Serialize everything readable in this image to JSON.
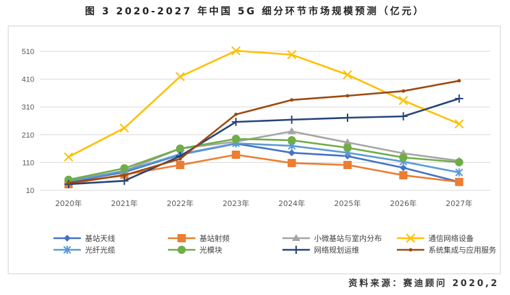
{
  "title": "图 3 2020-2027 年中国 5G 细分环节市场规模预测（亿元）",
  "source": "资料来源：赛迪顾问 2020,2",
  "chart_data": {
    "type": "line",
    "title": "图 3 2020-2027 年中国 5G 细分环节市场规模预测（亿元）",
    "categories": [
      "2020年",
      "2021年",
      "2022年",
      "2023年",
      "2024年",
      "2025年",
      "2026年",
      "2027年"
    ],
    "ylim": [
      10,
      560
    ],
    "yticks": [
      10,
      110,
      210,
      310,
      410,
      510
    ],
    "grid": true,
    "legend_placement": "bottom",
    "series": [
      {
        "name": "基站天线",
        "color": "#4472C4",
        "marker": "diamond",
        "values": [
          40,
          75,
          138,
          178,
          145,
          133,
          91,
          40
        ]
      },
      {
        "name": "基站射频",
        "color": "#ED7D31",
        "marker": "square",
        "values": [
          32,
          66,
          101,
          138,
          108,
          101,
          64,
          40
        ]
      },
      {
        "name": "小微基站与室内分布",
        "color": "#A5A5A5",
        "marker": "triangle",
        "values": [
          44,
          80,
          160,
          185,
          222,
          182,
          143,
          116
        ]
      },
      {
        "name": "通信网络设备",
        "color": "#FFC000",
        "marker": "x",
        "values": [
          130,
          234,
          419,
          512,
          498,
          426,
          333,
          249
        ]
      },
      {
        "name": "光纤光缆",
        "color": "#5B9BD5",
        "marker": "star",
        "values": [
          42,
          79,
          140,
          179,
          170,
          145,
          113,
          74
        ]
      },
      {
        "name": "光模块",
        "color": "#70AD47",
        "marker": "circle",
        "values": [
          48,
          89,
          160,
          195,
          190,
          163,
          128,
          111
        ]
      },
      {
        "name": "网络规划运维",
        "color": "#264478",
        "marker": "plus",
        "values": [
          32,
          44,
          133,
          256,
          264,
          271,
          276,
          340
        ]
      },
      {
        "name": "系统集成与应用服务",
        "color": "#9E480E",
        "marker": "dash",
        "values": [
          37,
          64,
          123,
          283,
          335,
          350,
          367,
          404
        ]
      }
    ]
  }
}
